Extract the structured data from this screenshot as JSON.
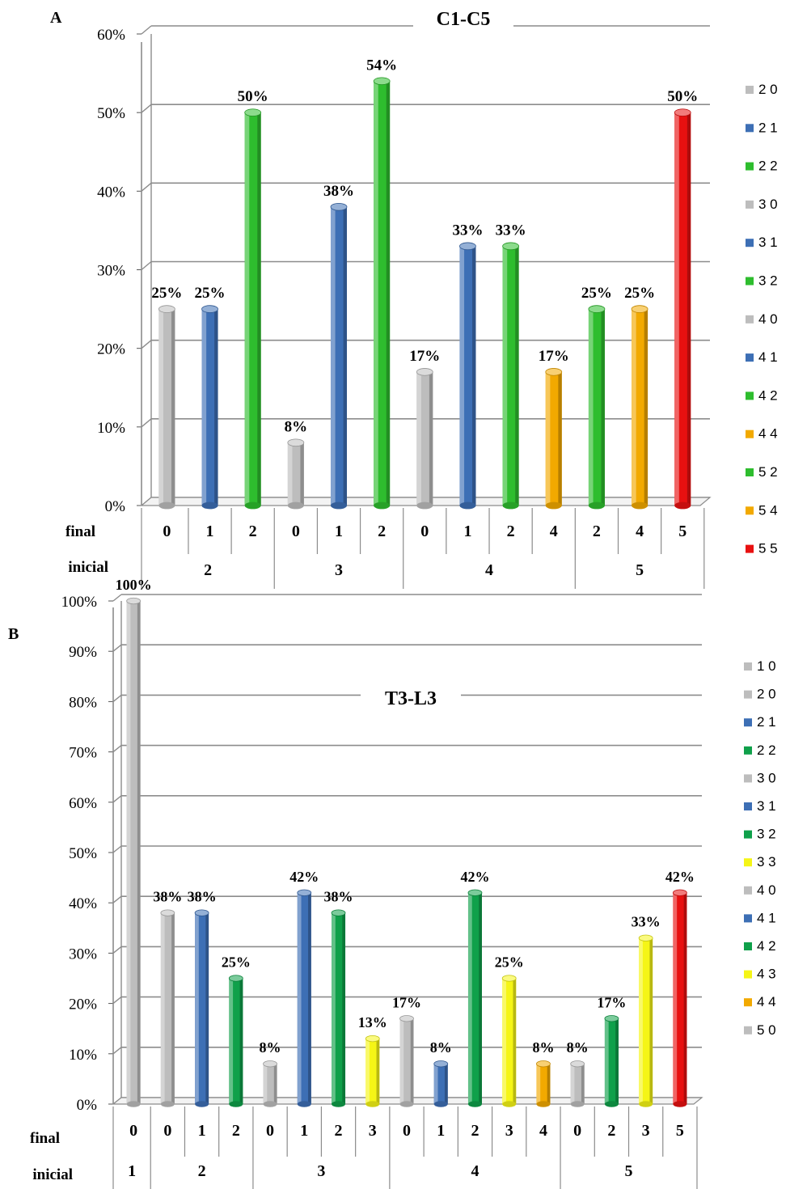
{
  "chart_data": [
    {
      "panel": "A",
      "type": "bar",
      "title": "C1-C5",
      "ylim": [
        0,
        60
      ],
      "y_ticks": [
        "0%",
        "10%",
        "20%",
        "30%",
        "40%",
        "50%",
        "60%"
      ],
      "grid": true,
      "legend_position": "right",
      "row_labels": {
        "final": "final",
        "inicial": "inicial"
      },
      "groups": [
        "2",
        "3",
        "4",
        "5"
      ],
      "bars": [
        {
          "inicial": "2",
          "final": "0",
          "value": 25,
          "label": "25%",
          "color": "#bdbdbd"
        },
        {
          "inicial": "2",
          "final": "1",
          "value": 25,
          "label": "25%",
          "color": "#3d6fb5"
        },
        {
          "inicial": "2",
          "final": "2",
          "value": 50,
          "label": "50%",
          "color": "#2ebd2e"
        },
        {
          "inicial": "3",
          "final": "0",
          "value": 8,
          "label": "8%",
          "color": "#bdbdbd"
        },
        {
          "inicial": "3",
          "final": "1",
          "value": 38,
          "label": "38%",
          "color": "#3d6fb5"
        },
        {
          "inicial": "3",
          "final": "2",
          "value": 54,
          "label": "54%",
          "color": "#2ebd2e"
        },
        {
          "inicial": "4",
          "final": "0",
          "value": 17,
          "label": "17%",
          "color": "#bdbdbd"
        },
        {
          "inicial": "4",
          "final": "1",
          "value": 33,
          "label": "33%",
          "color": "#3d6fb5"
        },
        {
          "inicial": "4",
          "final": "2",
          "value": 33,
          "label": "33%",
          "color": "#2ebd2e"
        },
        {
          "inicial": "4",
          "final": "4",
          "value": 17,
          "label": "17%",
          "color": "#f2a900"
        },
        {
          "inicial": "5",
          "final": "2",
          "value": 25,
          "label": "25%",
          "color": "#2ebd2e"
        },
        {
          "inicial": "5",
          "final": "4",
          "value": 25,
          "label": "25%",
          "color": "#f2a900"
        },
        {
          "inicial": "5",
          "final": "5",
          "value": 50,
          "label": "50%",
          "color": "#e81010"
        }
      ],
      "legend": [
        {
          "label": "2 0",
          "color": "#bdbdbd"
        },
        {
          "label": "2 1",
          "color": "#3d6fb5"
        },
        {
          "label": "2 2",
          "color": "#2ebd2e"
        },
        {
          "label": "3 0",
          "color": "#bdbdbd"
        },
        {
          "label": "3 1",
          "color": "#3d6fb5"
        },
        {
          "label": "3 2",
          "color": "#2ebd2e"
        },
        {
          "label": "4 0",
          "color": "#bdbdbd"
        },
        {
          "label": "4 1",
          "color": "#3d6fb5"
        },
        {
          "label": "4 2",
          "color": "#2ebd2e"
        },
        {
          "label": "4 4",
          "color": "#f2a900"
        },
        {
          "label": "5 2",
          "color": "#2ebd2e"
        },
        {
          "label": "5 4",
          "color": "#f2a900"
        },
        {
          "label": "5 5",
          "color": "#e81010"
        }
      ]
    },
    {
      "panel": "B",
      "type": "bar",
      "title": "T3-L3",
      "ylim": [
        0,
        100
      ],
      "y_ticks": [
        "0%",
        "10%",
        "20%",
        "30%",
        "40%",
        "50%",
        "60%",
        "70%",
        "80%",
        "90%",
        "100%"
      ],
      "grid": true,
      "legend_position": "right",
      "row_labels": {
        "final": "final",
        "inicial": "inicial"
      },
      "groups": [
        "1",
        "2",
        "3",
        "4",
        "5"
      ],
      "bars": [
        {
          "inicial": "1",
          "final": "0",
          "value": 100,
          "label": "100%",
          "color": "#bdbdbd"
        },
        {
          "inicial": "2",
          "final": "0",
          "value": 38,
          "label": "38%",
          "color": "#bdbdbd"
        },
        {
          "inicial": "2",
          "final": "1",
          "value": 38,
          "label": "38%",
          "color": "#3d6fb5"
        },
        {
          "inicial": "2",
          "final": "2",
          "value": 25,
          "label": "25%",
          "color": "#0fa04a"
        },
        {
          "inicial": "3",
          "final": "0",
          "value": 8,
          "label": "8%",
          "color": "#bdbdbd"
        },
        {
          "inicial": "3",
          "final": "1",
          "value": 42,
          "label": "42%",
          "color": "#3d6fb5"
        },
        {
          "inicial": "3",
          "final": "2",
          "value": 38,
          "label": "38%",
          "color": "#0fa04a"
        },
        {
          "inicial": "3",
          "final": "3",
          "value": 13,
          "label": "13%",
          "color": "#f5f516"
        },
        {
          "inicial": "4",
          "final": "0",
          "value": 17,
          "label": "17%",
          "color": "#bdbdbd"
        },
        {
          "inicial": "4",
          "final": "1",
          "value": 8,
          "label": "8%",
          "color": "#3d6fb5"
        },
        {
          "inicial": "4",
          "final": "2",
          "value": 42,
          "label": "42%",
          "color": "#0fa04a"
        },
        {
          "inicial": "4",
          "final": "3",
          "value": 25,
          "label": "25%",
          "color": "#f5f516"
        },
        {
          "inicial": "4",
          "final": "4",
          "value": 8,
          "label": "8%",
          "color": "#f2a900"
        },
        {
          "inicial": "5",
          "final": "0",
          "value": 8,
          "label": "8%",
          "color": "#bdbdbd"
        },
        {
          "inicial": "5",
          "final": "2",
          "value": 17,
          "label": "17%",
          "color": "#0fa04a"
        },
        {
          "inicial": "5",
          "final": "3",
          "value": 33,
          "label": "33%",
          "color": "#f5f516"
        },
        {
          "inicial": "5",
          "final": "5",
          "value": 42,
          "label": "42%",
          "color": "#e81010"
        }
      ],
      "legend": [
        {
          "label": "1 0",
          "color": "#bdbdbd"
        },
        {
          "label": "2 0",
          "color": "#bdbdbd"
        },
        {
          "label": "2 1",
          "color": "#3d6fb5"
        },
        {
          "label": "2 2",
          "color": "#0fa04a"
        },
        {
          "label": "3 0",
          "color": "#bdbdbd"
        },
        {
          "label": "3 1",
          "color": "#3d6fb5"
        },
        {
          "label": "3 2",
          "color": "#0fa04a"
        },
        {
          "label": "3 3",
          "color": "#f5f516"
        },
        {
          "label": "4 0",
          "color": "#bdbdbd"
        },
        {
          "label": "4 1",
          "color": "#3d6fb5"
        },
        {
          "label": "4 2",
          "color": "#0fa04a"
        },
        {
          "label": "4 3",
          "color": "#f5f516"
        },
        {
          "label": "4 4",
          "color": "#f2a900"
        },
        {
          "label": "5 0",
          "color": "#bdbdbd"
        }
      ]
    }
  ]
}
